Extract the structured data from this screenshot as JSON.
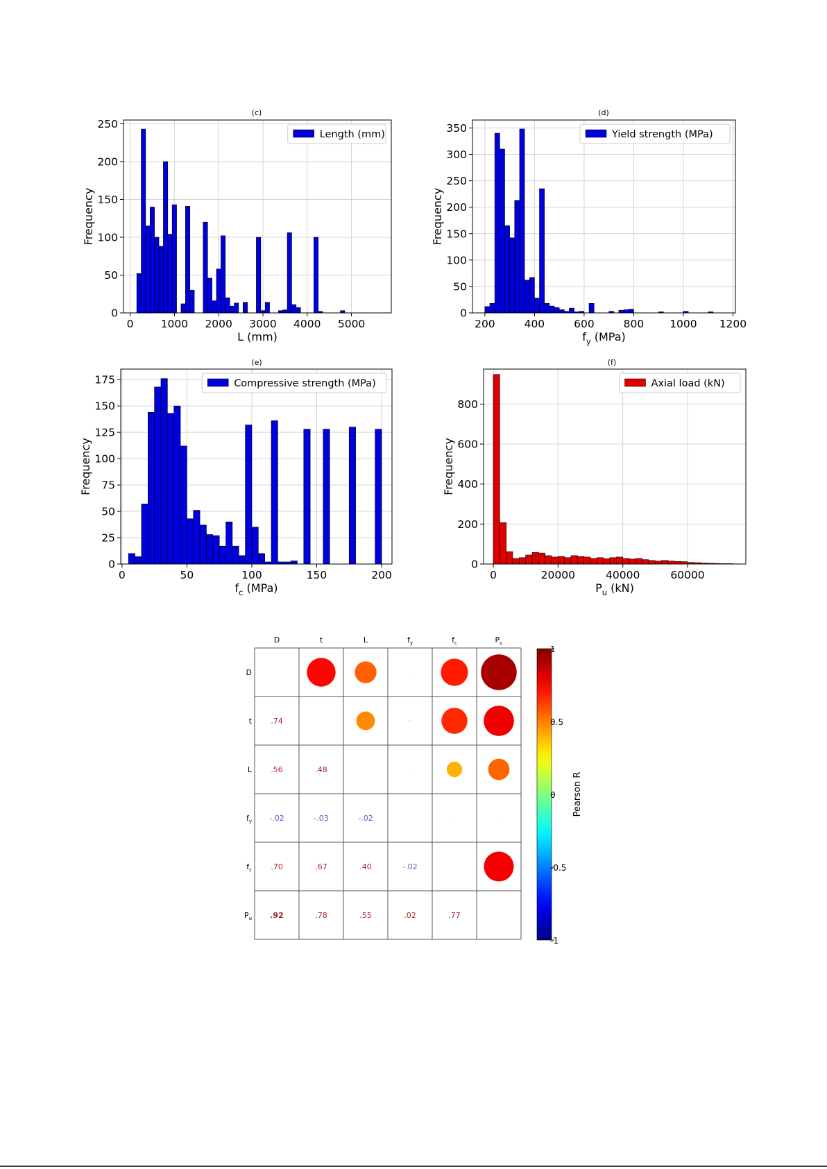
{
  "chart_data": [
    {
      "type": "bar",
      "panel_label": "(c)",
      "legend": [
        "Length (mm)"
      ],
      "legend_position": "top-right",
      "xlabel": "L (mm)",
      "ylabel": "Frequency",
      "xlim": [
        -150,
        5900
      ],
      "ylim": [
        0,
        255
      ],
      "xticks": [
        0,
        1000,
        2000,
        3000,
        4000,
        5000
      ],
      "yticks": [
        0,
        50,
        100,
        150,
        200,
        250
      ],
      "grid": true,
      "bar_color": "#0000dd",
      "bin_width": 100,
      "bins": [
        [
          150,
          52
        ],
        [
          250,
          243
        ],
        [
          350,
          115
        ],
        [
          450,
          140
        ],
        [
          550,
          100
        ],
        [
          650,
          88
        ],
        [
          750,
          200
        ],
        [
          850,
          104
        ],
        [
          950,
          143
        ],
        [
          1150,
          12
        ],
        [
          1250,
          141
        ],
        [
          1350,
          30
        ],
        [
          1650,
          120
        ],
        [
          1750,
          46
        ],
        [
          1850,
          16
        ],
        [
          1950,
          58
        ],
        [
          2050,
          102
        ],
        [
          2150,
          20
        ],
        [
          2250,
          9
        ],
        [
          2350,
          13
        ],
        [
          2550,
          14
        ],
        [
          2850,
          100
        ],
        [
          2950,
          3
        ],
        [
          3050,
          14
        ],
        [
          3350,
          3
        ],
        [
          3450,
          4
        ],
        [
          3550,
          106
        ],
        [
          3650,
          11
        ],
        [
          3750,
          7
        ],
        [
          4150,
          100
        ],
        [
          4250,
          2
        ],
        [
          4750,
          3
        ]
      ]
    },
    {
      "type": "bar",
      "panel_label": "(d)",
      "legend": [
        "Yield strength (MPa)"
      ],
      "legend_position": "top-right",
      "xlabel": "f_y (MPa)",
      "ylabel": "Frequency",
      "xlim": [
        150,
        1210
      ],
      "ylim": [
        0,
        365
      ],
      "xticks": [
        200,
        400,
        600,
        800,
        1000,
        1200
      ],
      "yticks": [
        0,
        50,
        100,
        150,
        200,
        250,
        300,
        350
      ],
      "grid": true,
      "bar_color": "#0000dd",
      "bin_width": 20,
      "bins": [
        [
          200,
          12
        ],
        [
          220,
          18
        ],
        [
          240,
          340
        ],
        [
          260,
          310
        ],
        [
          280,
          165
        ],
        [
          300,
          142
        ],
        [
          320,
          213
        ],
        [
          340,
          348
        ],
        [
          360,
          62
        ],
        [
          380,
          67
        ],
        [
          400,
          28
        ],
        [
          420,
          235
        ],
        [
          440,
          18
        ],
        [
          460,
          13
        ],
        [
          480,
          10
        ],
        [
          500,
          6
        ],
        [
          520,
          3
        ],
        [
          540,
          9
        ],
        [
          560,
          2
        ],
        [
          580,
          3
        ],
        [
          620,
          18
        ],
        [
          700,
          3
        ],
        [
          740,
          5
        ],
        [
          760,
          6
        ],
        [
          780,
          7
        ],
        [
          900,
          2
        ],
        [
          1000,
          3
        ],
        [
          1100,
          2
        ]
      ]
    },
    {
      "type": "bar",
      "panel_label": "(e)",
      "legend": [
        "Compressive strength (MPa)"
      ],
      "legend_position": "top-right",
      "xlabel": "f_c (MPa)",
      "ylabel": "Frequency",
      "xlim": [
        -1,
        208
      ],
      "ylim": [
        0,
        185
      ],
      "xticks": [
        0,
        50,
        100,
        150,
        200
      ],
      "yticks": [
        0,
        25,
        50,
        75,
        100,
        125,
        150,
        175
      ],
      "grid": true,
      "bar_color": "#0000dd",
      "bin_width": 5,
      "bins": [
        [
          5,
          10
        ],
        [
          10,
          7
        ],
        [
          15,
          57
        ],
        [
          20,
          144
        ],
        [
          25,
          168
        ],
        [
          30,
          176
        ],
        [
          35,
          143
        ],
        [
          40,
          150
        ],
        [
          45,
          112
        ],
        [
          50,
          43
        ],
        [
          55,
          51
        ],
        [
          60,
          37
        ],
        [
          65,
          28
        ],
        [
          70,
          27
        ],
        [
          75,
          17
        ],
        [
          80,
          40
        ],
        [
          85,
          17
        ],
        [
          90,
          8
        ],
        [
          95,
          132
        ],
        [
          100,
          35
        ],
        [
          105,
          10
        ],
        [
          110,
          2
        ],
        [
          115,
          136
        ],
        [
          120,
          2
        ],
        [
          125,
          2
        ],
        [
          130,
          3
        ],
        [
          140,
          128
        ],
        [
          155,
          128
        ],
        [
          175,
          130
        ],
        [
          195,
          128
        ]
      ]
    },
    {
      "type": "bar",
      "panel_label": "(f)",
      "legend": [
        "Axial load (kN)"
      ],
      "legend_position": "top-right",
      "xlabel": "P_u (kN)",
      "ylabel": "Frequency",
      "xlim": [
        -3000,
        78000
      ],
      "ylim": [
        0,
        975
      ],
      "xticks": [
        0,
        20000,
        40000,
        60000
      ],
      "yticks": [
        0,
        200,
        400,
        600,
        800
      ],
      "grid": true,
      "bar_color": "#dd0000",
      "bin_width": 2000,
      "bins": [
        [
          0,
          948
        ],
        [
          2000,
          207
        ],
        [
          4000,
          62
        ],
        [
          6000,
          28
        ],
        [
          8000,
          32
        ],
        [
          10000,
          45
        ],
        [
          12000,
          58
        ],
        [
          14000,
          55
        ],
        [
          16000,
          42
        ],
        [
          18000,
          35
        ],
        [
          20000,
          38
        ],
        [
          22000,
          32
        ],
        [
          24000,
          42
        ],
        [
          26000,
          38
        ],
        [
          28000,
          35
        ],
        [
          30000,
          28
        ],
        [
          32000,
          32
        ],
        [
          34000,
          27
        ],
        [
          36000,
          32
        ],
        [
          38000,
          35
        ],
        [
          40000,
          28
        ],
        [
          42000,
          25
        ],
        [
          44000,
          28
        ],
        [
          46000,
          22
        ],
        [
          48000,
          18
        ],
        [
          50000,
          15
        ],
        [
          52000,
          18
        ],
        [
          54000,
          15
        ],
        [
          56000,
          13
        ],
        [
          58000,
          12
        ],
        [
          60000,
          8
        ],
        [
          62000,
          7
        ],
        [
          64000,
          5
        ],
        [
          66000,
          4
        ],
        [
          68000,
          3
        ],
        [
          70000,
          2
        ],
        [
          72000,
          2
        ],
        [
          74000,
          1
        ]
      ]
    },
    {
      "type": "heatmap",
      "variables": [
        {
          "name": "D",
          "sub": ""
        },
        {
          "name": "t",
          "sub": ""
        },
        {
          "name": "L",
          "sub": ""
        },
        {
          "name": "f",
          "sub": "y"
        },
        {
          "name": "f",
          "sub": "c"
        },
        {
          "name": "P",
          "sub": "u"
        }
      ],
      "matrix": [
        [
          1,
          0.74,
          0.56,
          -0.02,
          0.7,
          0.92
        ],
        [
          0.74,
          1,
          0.48,
          -0.03,
          0.67,
          0.78
        ],
        [
          0.56,
          0.48,
          1,
          -0.02,
          0.4,
          0.55
        ],
        [
          -0.02,
          -0.03,
          -0.02,
          1,
          -0.02,
          0.02
        ],
        [
          0.7,
          0.67,
          0.4,
          -0.02,
          1,
          0.77
        ],
        [
          0.92,
          0.78,
          0.55,
          0.02,
          0.77,
          1
        ]
      ],
      "lower_labels": [
        [
          null,
          null,
          null,
          null,
          null,
          null
        ],
        [
          ".74",
          null,
          null,
          null,
          null,
          null
        ],
        [
          ".56",
          ".48",
          null,
          null,
          null,
          null
        ],
        [
          "-.02",
          "-.03",
          "-.02",
          null,
          null,
          null
        ],
        [
          ".70",
          ".67",
          ".40",
          "-.02",
          null,
          null
        ],
        [
          ".92",
          ".78",
          ".55",
          ".02",
          ".77",
          null
        ]
      ],
      "colorbar": {
        "label": "Pearson R",
        "range": [
          -1,
          1
        ],
        "ticks": [
          "1",
          "0.5",
          "0",
          "-0.5",
          "-1"
        ],
        "colormap": "jet"
      }
    }
  ]
}
